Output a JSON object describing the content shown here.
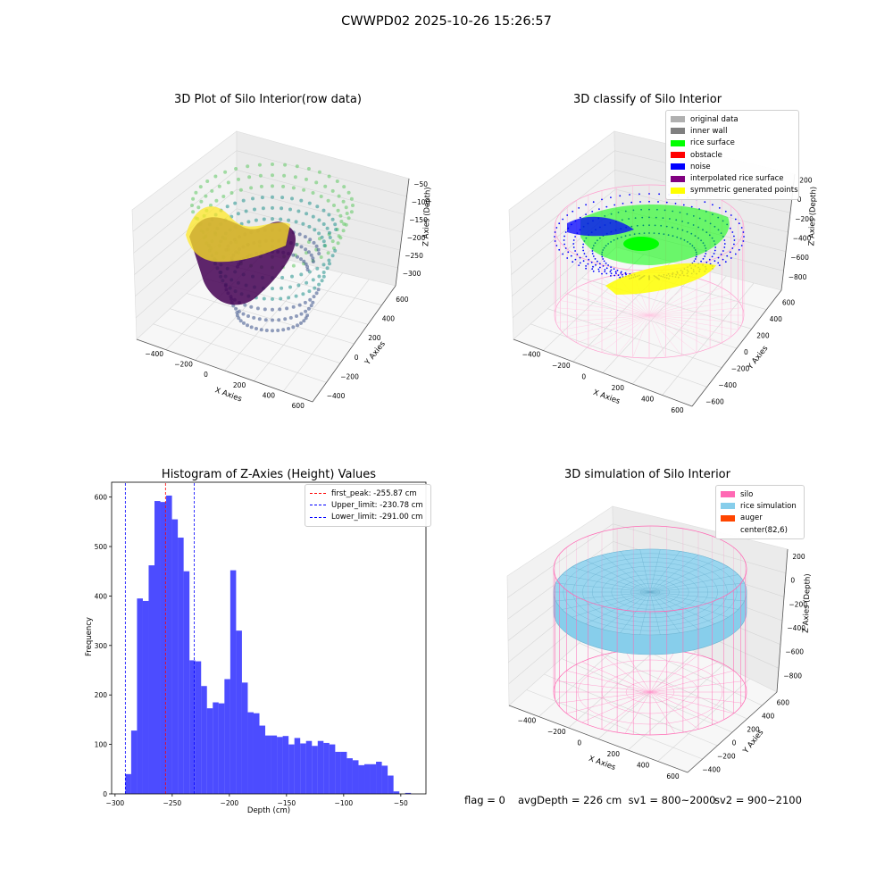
{
  "figure": {
    "suptitle": "CWWPD02 2025-10-26 15:26:57"
  },
  "panels": {
    "raw": {
      "title": "3D Plot of Silo Interior(row data)",
      "xlabel": "X Axies",
      "ylabel": "Y Axies",
      "zlabel": "Z Axies (Depth)",
      "xticks": [
        "−400",
        "−200",
        "0",
        "200",
        "400",
        "600"
      ],
      "yticks": [
        "600",
        "400",
        "200",
        "0",
        "−200",
        "−400"
      ],
      "zticks": [
        "−50",
        "−100",
        "−150",
        "−200",
        "−250",
        "−300"
      ],
      "colormap": [
        "#440154",
        "#3b528b",
        "#21918c",
        "#5ec962",
        "#fde725"
      ]
    },
    "classify": {
      "title": "3D classify of Silo Interior",
      "xlabel": "X Axies",
      "ylabel": "Y Axies",
      "zlabel": "Z Axies (Depth)",
      "xticks": [
        "−400",
        "−200",
        "0",
        "200",
        "400",
        "600"
      ],
      "yticks": [
        "600",
        "400",
        "200",
        "0",
        "−200",
        "−400",
        "−600"
      ],
      "zticks": [
        "200",
        "0",
        "−200",
        "−400",
        "−600",
        "−800"
      ],
      "legend": [
        {
          "label": "original data",
          "color": "#b0b0b0"
        },
        {
          "label": "inner wall",
          "color": "#808080"
        },
        {
          "label": "rice surface",
          "color": "#00ff00"
        },
        {
          "label": "obstacle",
          "color": "#ff0000"
        },
        {
          "label": "noise",
          "color": "#0000ff"
        },
        {
          "label": "interpolated rice surface",
          "color": "#800080"
        },
        {
          "label": "symmetric generated points",
          "color": "#ffff00"
        }
      ]
    },
    "simulation": {
      "title": "3D simulation of Silo Interior",
      "xlabel": "X Axies",
      "ylabel": "Y Axies",
      "zlabel": "Z Axies (Depth)",
      "xticks": [
        "−400",
        "−200",
        "0",
        "200",
        "400",
        "600"
      ],
      "yticks": [
        "600",
        "400",
        "200",
        "0",
        "−200",
        "−400"
      ],
      "zticks": [
        "200",
        "0",
        "−200",
        "−400",
        "−600",
        "−800"
      ],
      "legend": [
        {
          "label": "silo",
          "color": "#ff69b4"
        },
        {
          "label": "rice simulation",
          "color": "#87ceeb"
        },
        {
          "label": "auger",
          "color": "#ff4500"
        },
        {
          "label": "center(82,6)",
          "color": ""
        }
      ]
    }
  },
  "chart_data": {
    "type": "bar",
    "title": "Histogram of Z-Axies (Height) Values",
    "xlabel": "Depth (cm)",
    "ylabel": "Frequency",
    "xlim": [
      -303,
      -28
    ],
    "ylim": [
      0,
      630
    ],
    "xticks": [
      -300,
      -250,
      -200,
      -150,
      -100,
      -50
    ],
    "yticks": [
      0,
      100,
      200,
      300,
      400,
      500,
      600
    ],
    "bin_start": -291.0,
    "bin_width": 5.1,
    "values": [
      40,
      128,
      395,
      390,
      462,
      592,
      590,
      603,
      555,
      518,
      450,
      270,
      268,
      218,
      173,
      185,
      183,
      232,
      452,
      330,
      225,
      165,
      163,
      138,
      118,
      118,
      115,
      117,
      100,
      113,
      102,
      107,
      97,
      107,
      103,
      100,
      85,
      85,
      72,
      68,
      58,
      60,
      60,
      65,
      57,
      37,
      5,
      0,
      2,
      0
    ],
    "color": "#0000ff",
    "vlines": [
      {
        "label": "first_peak: -255.87 cm",
        "x": -255.87,
        "color": "#ff0000"
      },
      {
        "label": "Upper_limit: -230.78 cm",
        "x": -230.78,
        "color": "#0000ff"
      },
      {
        "label": "Lower_limit: -291.00 cm",
        "x": -291.0,
        "color": "#0000ff"
      }
    ],
    "legend_position": "upper-right"
  },
  "footer": {
    "flag": "flag = 0",
    "avg": "avgDepth = 226 cm  sv1 = 800~2000",
    "sv2": "sv2 = 900~2100"
  }
}
